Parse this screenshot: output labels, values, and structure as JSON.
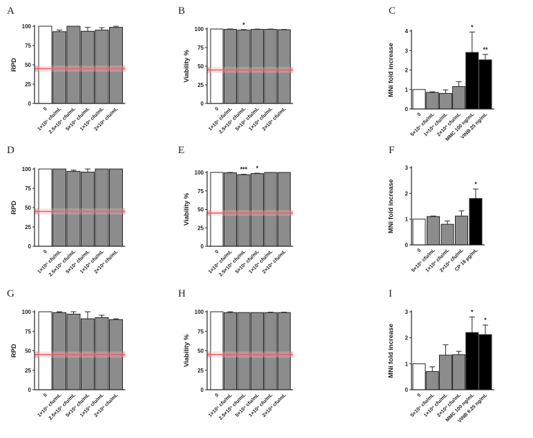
{
  "chart_data": [
    {
      "id": "A",
      "type": "bar",
      "ylabel": "RPD",
      "ylim": [
        0,
        100
      ],
      "yticks": [
        0,
        25,
        50,
        75,
        100
      ],
      "categories": [
        "0",
        "1×10⁵ cfu/mL",
        "2.5×10⁵ cfu/mL",
        "5×10⁵ cfu/mL",
        "1×10⁶ cfu/mL",
        "2×10⁶ cfu/mL"
      ],
      "values": [
        100,
        93,
        100,
        93.5,
        95,
        98.5
      ],
      "errors": [
        0,
        2,
        0,
        5,
        3,
        1.5
      ],
      "colors": [
        "white",
        "gray",
        "gray",
        "gray",
        "gray",
        "gray"
      ],
      "significance": [
        "",
        "",
        "",
        "",
        "",
        ""
      ],
      "threshold": {
        "value": 45,
        "band": 4,
        "color": "#e8343a",
        "band_color": "#f6b7ba"
      }
    },
    {
      "id": "B",
      "type": "bar",
      "ylabel": "Viability %",
      "ylim": [
        0,
        100
      ],
      "yticks": [
        0,
        25,
        50,
        75,
        100
      ],
      "categories": [
        "0",
        "1×10⁵ cfu/mL",
        "2.5×10⁵ cfu/mL",
        "5×10⁵ cfu/mL",
        "1×10⁶ cfu/mL",
        "2×10⁶ cfu/mL"
      ],
      "values": [
        100,
        99.5,
        98.5,
        99.5,
        99.5,
        99
      ],
      "errors": [
        0,
        0.5,
        0.7,
        0.4,
        0.4,
        0.4
      ],
      "colors": [
        "white",
        "gray",
        "gray",
        "gray",
        "gray",
        "gray"
      ],
      "significance": [
        "",
        "",
        "*",
        "",
        "",
        ""
      ],
      "threshold": {
        "value": 45,
        "band": 4,
        "color": "#e8343a",
        "band_color": "#f6b7ba"
      }
    },
    {
      "id": "C",
      "type": "bar",
      "ylabel": "MNi fold increase",
      "ylim": [
        0,
        4
      ],
      "yticks": [
        0,
        1,
        2,
        3,
        4
      ],
      "categories": [
        "0",
        "5×10⁵ cfu/mL",
        "1×10⁶ cfu/mL",
        "2×10⁶ cfu/mL",
        "MMC 100 ng/mL",
        "VINB 25 ng/mL"
      ],
      "values": [
        1.0,
        0.85,
        0.8,
        1.15,
        2.9,
        2.52
      ],
      "errors": [
        0,
        0.03,
        0.18,
        0.25,
        1.05,
        0.28
      ],
      "colors": [
        "white",
        "gray",
        "gray",
        "gray",
        "black",
        "black"
      ],
      "significance": [
        "",
        "",
        "",
        "",
        "*",
        "**"
      ]
    },
    {
      "id": "D",
      "type": "bar",
      "ylabel": "RPD",
      "ylim": [
        0,
        100
      ],
      "yticks": [
        0,
        25,
        50,
        75,
        100
      ],
      "categories": [
        "0",
        "1×10⁵ cfu/mL",
        "2.5×10⁵ cfu/mL",
        "5×10⁵ cfu/mL",
        "1×10⁶ cfu/mL",
        "2×10⁶ cfu/mL"
      ],
      "values": [
        100,
        100,
        97,
        96,
        100,
        100
      ],
      "errors": [
        0,
        0,
        1.5,
        4,
        0,
        0
      ],
      "colors": [
        "white",
        "gray",
        "gray",
        "gray",
        "gray",
        "gray"
      ],
      "significance": [
        "",
        "",
        "",
        "",
        "",
        ""
      ],
      "threshold": {
        "value": 45,
        "band": 4,
        "color": "#e8343a",
        "band_color": "#f6b7ba"
      }
    },
    {
      "id": "E",
      "type": "bar",
      "ylabel": "Viability %",
      "ylim": [
        0,
        100
      ],
      "yticks": [
        0,
        25,
        50,
        75,
        100
      ],
      "categories": [
        "0",
        "1×10⁵ cfu/mL",
        "2.5×10⁵ cfu/mL",
        "5×10⁵ cfu/mL",
        "1×10⁶ cfu/mL",
        "2×10⁶ cfu/mL"
      ],
      "values": [
        100,
        99.5,
        97,
        98.5,
        100,
        100
      ],
      "errors": [
        0,
        0.5,
        0.5,
        0.5,
        0,
        0
      ],
      "colors": [
        "white",
        "gray",
        "gray",
        "gray",
        "gray",
        "gray"
      ],
      "significance": [
        "",
        "",
        "***",
        "*",
        "",
        ""
      ],
      "threshold": {
        "value": 45,
        "band": 4,
        "color": "#e8343a",
        "band_color": "#f6b7ba"
      }
    },
    {
      "id": "F",
      "type": "bar",
      "ylabel": "MNi fold increase",
      "ylim": [
        0,
        3
      ],
      "yticks": [
        0,
        1,
        2,
        3
      ],
      "categories": [
        "0",
        "5×10⁵ cfu/mL",
        "1×10⁶ cfu/mL",
        "2×10⁶ cfu/mL",
        "CP 16 µg/mL"
      ],
      "values": [
        1.0,
        1.1,
        0.8,
        1.12,
        1.8
      ],
      "errors": [
        0,
        0.02,
        0.13,
        0.2,
        0.37
      ],
      "colors": [
        "white",
        "gray",
        "gray",
        "gray",
        "black"
      ],
      "significance": [
        "",
        "",
        "",
        "",
        "*"
      ]
    },
    {
      "id": "G",
      "type": "bar",
      "ylabel": "RPD",
      "ylim": [
        0,
        100
      ],
      "yticks": [
        0,
        25,
        50,
        75,
        100
      ],
      "categories": [
        "0",
        "1×10⁵ cfu/mL",
        "2.5×10⁵ cfu/mL",
        "5×10⁵ cfu/mL",
        "1×10⁶ cfu/mL",
        "2×10⁶ cfu/mL"
      ],
      "values": [
        100,
        99,
        97,
        91,
        92.5,
        90
      ],
      "errors": [
        0,
        1,
        3,
        9,
        3,
        1
      ],
      "colors": [
        "white",
        "gray",
        "gray",
        "gray",
        "gray",
        "gray"
      ],
      "significance": [
        "",
        "",
        "",
        "",
        "",
        ""
      ],
      "threshold": {
        "value": 45,
        "band": 4,
        "color": "#e8343a",
        "band_color": "#f6b7ba"
      }
    },
    {
      "id": "H",
      "type": "bar",
      "ylabel": "Viability %",
      "ylim": [
        0,
        100
      ],
      "yticks": [
        0,
        25,
        50,
        75,
        100
      ],
      "categories": [
        "0",
        "1×10⁵ cfu/mL",
        "2.5×10⁵ cfu/mL",
        "5×10⁵ cfu/mL",
        "1×10⁶ cfu/mL",
        "2×10⁶ cfu/mL"
      ],
      "values": [
        100,
        99,
        99,
        99,
        99,
        99
      ],
      "errors": [
        0,
        1,
        0,
        0,
        0.5,
        0.5
      ],
      "colors": [
        "white",
        "gray",
        "gray",
        "gray",
        "gray",
        "gray"
      ],
      "significance": [
        "",
        "",
        "",
        "",
        "",
        ""
      ],
      "threshold": {
        "value": 45,
        "band": 4,
        "color": "#e8343a",
        "band_color": "#f6b7ba"
      }
    },
    {
      "id": "I",
      "type": "bar",
      "ylabel": "MNi fold increase",
      "ylim": [
        0,
        3
      ],
      "yticks": [
        0,
        1,
        2,
        3
      ],
      "categories": [
        "0",
        "5×10⁵ cfu/mL",
        "1×10⁶ cfu/mL",
        "2×10⁶ cfu/mL",
        "MMC 100 ng/mL",
        "VINB 6.25 ng/mL"
      ],
      "values": [
        1.0,
        0.7,
        1.33,
        1.35,
        2.2,
        2.12
      ],
      "errors": [
        0,
        0.18,
        0.4,
        0.13,
        0.6,
        0.37
      ],
      "colors": [
        "white",
        "gray",
        "gray",
        "gray",
        "black",
        "black"
      ],
      "significance": [
        "",
        "",
        "",
        "",
        "*",
        "*"
      ]
    }
  ],
  "colors": {
    "white_bar": "#ffffff",
    "gray_bar": "#8c8c8c",
    "black_bar": "#000000",
    "axis": "#222222",
    "threshold_line": "#e8343a",
    "threshold_band": "#f6b7ba"
  }
}
